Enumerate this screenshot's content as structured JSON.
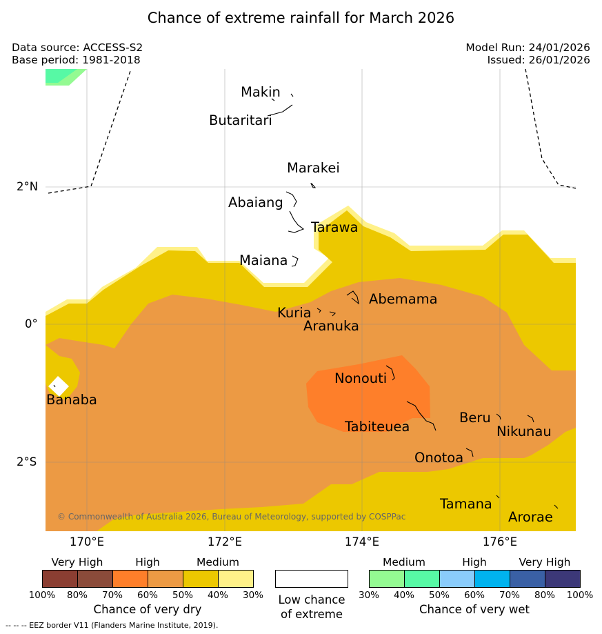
{
  "title": "Chance of extreme rainfall for March 2026",
  "meta": {
    "data_source": "Data source: ACCESS-S2",
    "base_period": "Base period: 1981-2018",
    "model_run": "Model Run: 24/01/2026",
    "issued": "Issued: 26/01/2026"
  },
  "map": {
    "latitude_labels": [
      "2°N",
      "0°",
      "2°S"
    ],
    "longitude_labels": [
      "170°E",
      "172°E",
      "174°E",
      "176°E"
    ],
    "places": [
      "Makin",
      "Butaritari",
      "Marakei",
      "Abaiang",
      "Tarawa",
      "Maiana",
      "Abemama",
      "Kuria",
      "Aranuka",
      "Nonouti",
      "Banaba",
      "Tabiteuea",
      "Beru",
      "Nikunau",
      "Onotoa",
      "Tamana",
      "Arorae"
    ],
    "copyright": "© Commonwealth of Australia 2026, Bureau of Meteorology, supported by COSPPac",
    "colors": {
      "dry_70_80": "#8b4b3a",
      "dry_60_70": "#fe7f2a",
      "dry_50_60": "#ec9a44",
      "dry_40_50": "#ecc800",
      "dry_30_40": "#fff189",
      "wet_30_40": "#94fa92",
      "wet_40_50": "#57f9a5"
    }
  },
  "legend": {
    "dry": {
      "categories": [
        "Very High",
        "High",
        "Medium"
      ],
      "ticks": [
        "100%",
        "80%",
        "70%",
        "60%",
        "50%",
        "40%",
        "30%"
      ],
      "caption": "Chance of very dry",
      "colors": [
        "#8b3e32",
        "#8b4b3a",
        "#fe7f2a",
        "#ec9a44",
        "#ecc800",
        "#fff189"
      ]
    },
    "neutral": {
      "caption_line1": "Low chance",
      "caption_line2": "of extreme"
    },
    "wet": {
      "categories": [
        "Medium",
        "High",
        "Very High"
      ],
      "ticks": [
        "30%",
        "40%",
        "50%",
        "60%",
        "70%",
        "80%",
        "100%"
      ],
      "caption": "Chance of very wet",
      "colors": [
        "#94fa92",
        "#57f9a5",
        "#8accfb",
        "#00b3ef",
        "#3a60a5",
        "#3c3878"
      ]
    }
  },
  "footnote": "-- -- -- EEZ border V11 (Flanders Marine Institute, 2019)."
}
